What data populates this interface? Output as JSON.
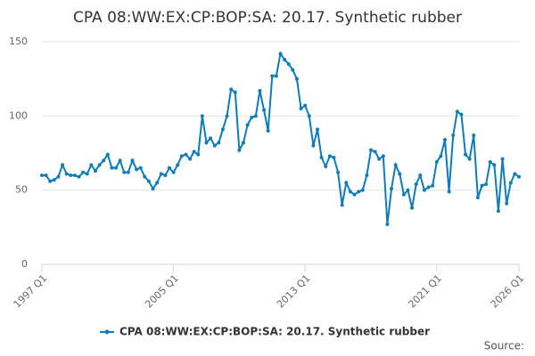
{
  "chart_data": {
    "type": "line",
    "title": "CPA 08:WW:EX:CP:BOP:SA: 20.17. Synthetic rubber",
    "categories": [
      "1997 Q1",
      null,
      null,
      null,
      null,
      null,
      null,
      null,
      null,
      null,
      null,
      null,
      null,
      null,
      null,
      null,
      null,
      null,
      null,
      null,
      null,
      null,
      null,
      null,
      null,
      null,
      null,
      null,
      null,
      null,
      null,
      null,
      "2005 Q1",
      null,
      null,
      null,
      null,
      null,
      null,
      null,
      null,
      null,
      null,
      null,
      null,
      null,
      null,
      null,
      null,
      null,
      null,
      null,
      null,
      null,
      null,
      null,
      null,
      null,
      null,
      null,
      null,
      null,
      null,
      null,
      "2013 Q1",
      null,
      null,
      null,
      null,
      null,
      null,
      null,
      null,
      null,
      null,
      null,
      null,
      null,
      null,
      null,
      null,
      null,
      null,
      null,
      null,
      null,
      null,
      null,
      null,
      null,
      null,
      null,
      null,
      null,
      null,
      null,
      "2021 Q1",
      null,
      null,
      null,
      null,
      null,
      null,
      null,
      null,
      null,
      null,
      null,
      null,
      null,
      null,
      null,
      null,
      null,
      null,
      null,
      "2026 Q1"
    ],
    "series": [
      {
        "name": "CPA 08:WW:EX:CP:BOP:SA: 20.17. Synthetic rubber",
        "color": "#0f7cb7",
        "values": [
          60,
          60,
          56,
          57,
          59,
          67,
          61,
          60,
          60,
          59,
          62,
          61,
          67,
          63,
          67,
          70,
          74,
          65,
          65,
          70,
          62,
          62,
          70,
          64,
          65,
          59,
          56,
          51,
          55,
          61,
          60,
          65,
          62,
          67,
          73,
          74,
          71,
          76,
          74,
          100,
          82,
          85,
          80,
          82,
          91,
          100,
          118,
          116,
          77,
          82,
          94,
          99,
          100,
          117,
          104,
          90,
          127,
          127,
          142,
          138,
          135,
          131,
          125,
          105,
          107,
          100,
          80,
          91,
          72,
          66,
          73,
          72,
          62,
          40,
          55,
          49,
          47,
          49,
          50,
          60,
          77,
          76,
          71,
          73,
          27,
          51,
          67,
          61,
          47,
          50,
          38,
          54,
          60,
          50,
          52,
          53,
          69,
          73,
          84,
          49,
          87,
          103,
          101,
          74,
          71,
          87,
          45,
          53,
          54,
          69,
          67,
          36,
          71,
          41,
          55,
          61,
          59
        ]
      }
    ],
    "ylim": [
      0,
      150
    ],
    "yticks": [
      0,
      50,
      100,
      150
    ],
    "grid": true,
    "source": "Source:"
  }
}
